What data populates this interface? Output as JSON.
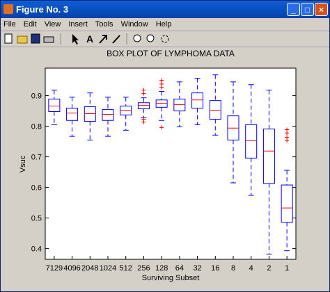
{
  "window": {
    "title": "Figure No. 3",
    "menu": [
      "File",
      "Edit",
      "View",
      "Insert",
      "Tools",
      "Window",
      "Help"
    ]
  },
  "chart_data": {
    "type": "box",
    "title": "BOX PLOT OF LYMPHOMA DATA",
    "x_label": "Surviving Subset",
    "y_label": "Vsuc",
    "categories": [
      "7129",
      "4096",
      "2048",
      "1024",
      "512",
      "256",
      "128",
      "64",
      "32",
      "16",
      "8",
      "4",
      "2",
      "1"
    ],
    "box_color": "#0000ff",
    "median_color": "#ff0000",
    "outlier_color": "#ff0000",
    "ylim": [
      0.365,
      0.99
    ],
    "yticks": [
      0.4,
      0.5,
      0.6,
      0.7,
      0.8,
      0.9
    ],
    "boxes": [
      {
        "min": 0.805,
        "q1": 0.848,
        "median": 0.866,
        "q3": 0.889,
        "max": 0.918,
        "outliers": []
      },
      {
        "min": 0.767,
        "q1": 0.819,
        "median": 0.843,
        "q3": 0.859,
        "max": 0.895,
        "outliers": []
      },
      {
        "min": 0.755,
        "q1": 0.816,
        "median": 0.841,
        "q3": 0.864,
        "max": 0.909,
        "outliers": []
      },
      {
        "min": 0.767,
        "q1": 0.819,
        "median": 0.839,
        "q3": 0.855,
        "max": 0.895,
        "outliers": []
      },
      {
        "min": 0.787,
        "q1": 0.837,
        "median": 0.852,
        "q3": 0.866,
        "max": 0.895,
        "outliers": []
      },
      {
        "min": 0.828,
        "q1": 0.857,
        "median": 0.868,
        "q3": 0.877,
        "max": 0.893,
        "outliers": [
          0.918,
          0.907,
          0.823,
          0.814
        ]
      },
      {
        "min": 0.819,
        "q1": 0.862,
        "median": 0.875,
        "q3": 0.886,
        "max": 0.914,
        "outliers": [
          0.95,
          0.938,
          0.927,
          0.796
        ]
      },
      {
        "min": 0.798,
        "q1": 0.85,
        "median": 0.871,
        "q3": 0.889,
        "max": 0.945,
        "outliers": []
      },
      {
        "min": 0.805,
        "q1": 0.859,
        "median": 0.886,
        "q3": 0.909,
        "max": 0.957,
        "outliers": []
      },
      {
        "min": 0.771,
        "q1": 0.823,
        "median": 0.852,
        "q3": 0.884,
        "max": 0.968,
        "outliers": []
      },
      {
        "min": 0.615,
        "q1": 0.755,
        "median": 0.794,
        "q3": 0.834,
        "max": 0.945,
        "outliers": []
      },
      {
        "min": 0.574,
        "q1": 0.696,
        "median": 0.753,
        "q3": 0.805,
        "max": 0.936,
        "outliers": []
      },
      {
        "min": 0.382,
        "q1": 0.613,
        "median": 0.719,
        "q3": 0.791,
        "max": 0.918,
        "outliers": []
      },
      {
        "min": 0.393,
        "q1": 0.486,
        "median": 0.533,
        "q3": 0.608,
        "max": 0.656,
        "outliers": [
          0.789,
          0.778,
          0.764,
          0.753
        ]
      }
    ]
  }
}
